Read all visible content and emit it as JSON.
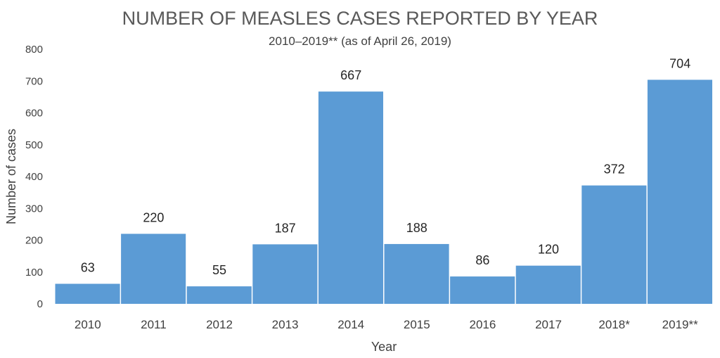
{
  "chart_data": {
    "type": "bar",
    "title": "NUMBER OF MEASLES CASES REPORTED BY YEAR",
    "subtitle": "2010–2019** (as of April 26, 2019)",
    "xlabel": "Year",
    "ylabel": "Number of cases",
    "categories": [
      "2010",
      "2011",
      "2012",
      "2013",
      "2014",
      "2015",
      "2016",
      "2017",
      "2018*",
      "2019**"
    ],
    "values": [
      63,
      220,
      55,
      187,
      667,
      188,
      86,
      120,
      372,
      704
    ],
    "ylim": [
      0,
      800
    ],
    "yticks": [
      "0",
      "100",
      "200",
      "300",
      "400",
      "500",
      "600",
      "700",
      "800"
    ],
    "grid": false,
    "legend": "none",
    "bar_color": "#5b9bd5"
  }
}
